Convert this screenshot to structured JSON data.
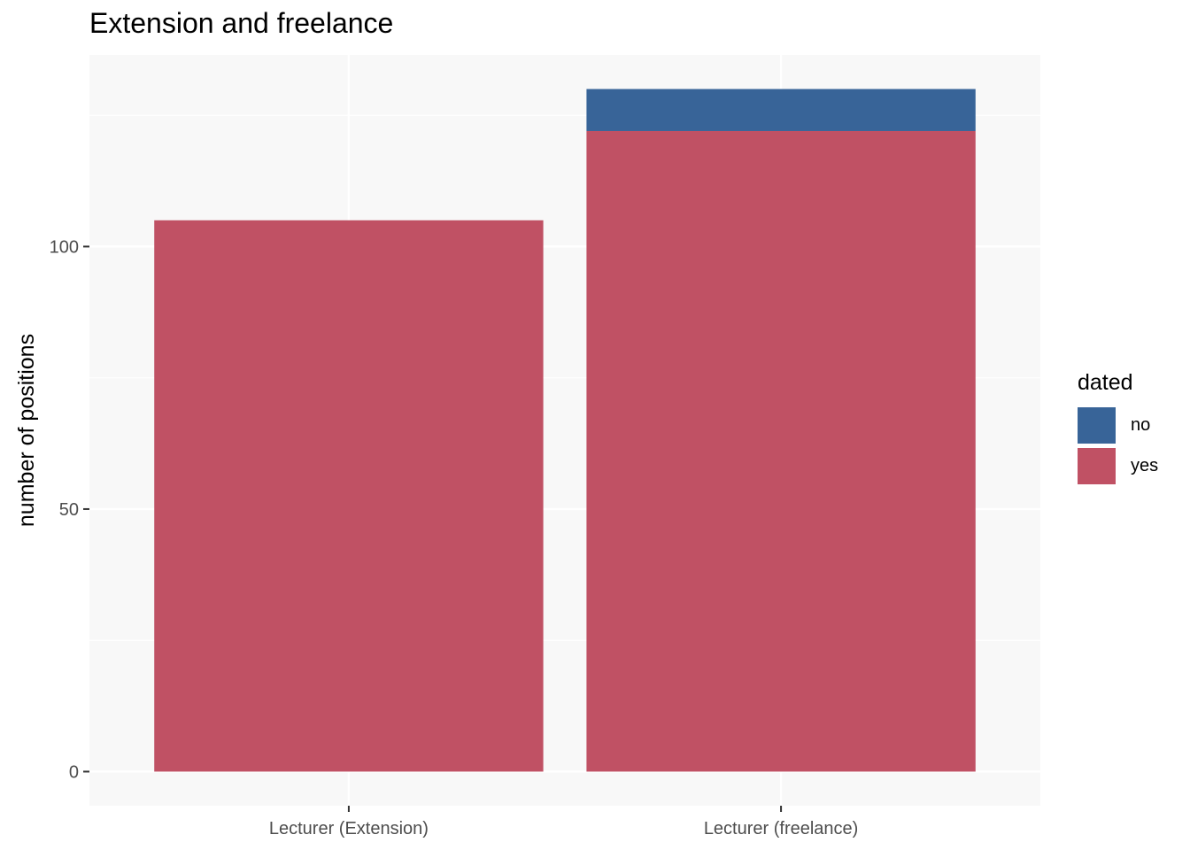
{
  "chart_data": {
    "type": "bar",
    "stacked": true,
    "title": "Extension and freelance",
    "xlabel": "",
    "ylabel": "number of positions",
    "categories": [
      "Lecturer (Extension)",
      "Lecturer (freelance)"
    ],
    "series": [
      {
        "name": "yes",
        "values": [
          105,
          122
        ],
        "color": "#c05164"
      },
      {
        "name": "no",
        "values": [
          0,
          8
        ],
        "color": "#386498"
      }
    ],
    "ylim": [
      -6.5,
      136.5
    ],
    "yticks": [
      0,
      50,
      100
    ],
    "grid": true,
    "legend": {
      "title": "dated",
      "position": "right",
      "entries": [
        {
          "label": "no",
          "color": "#386498"
        },
        {
          "label": "yes",
          "color": "#c05164"
        }
      ]
    },
    "panel_background": "#f8f8f8",
    "gridline_color": "#ffffff"
  }
}
